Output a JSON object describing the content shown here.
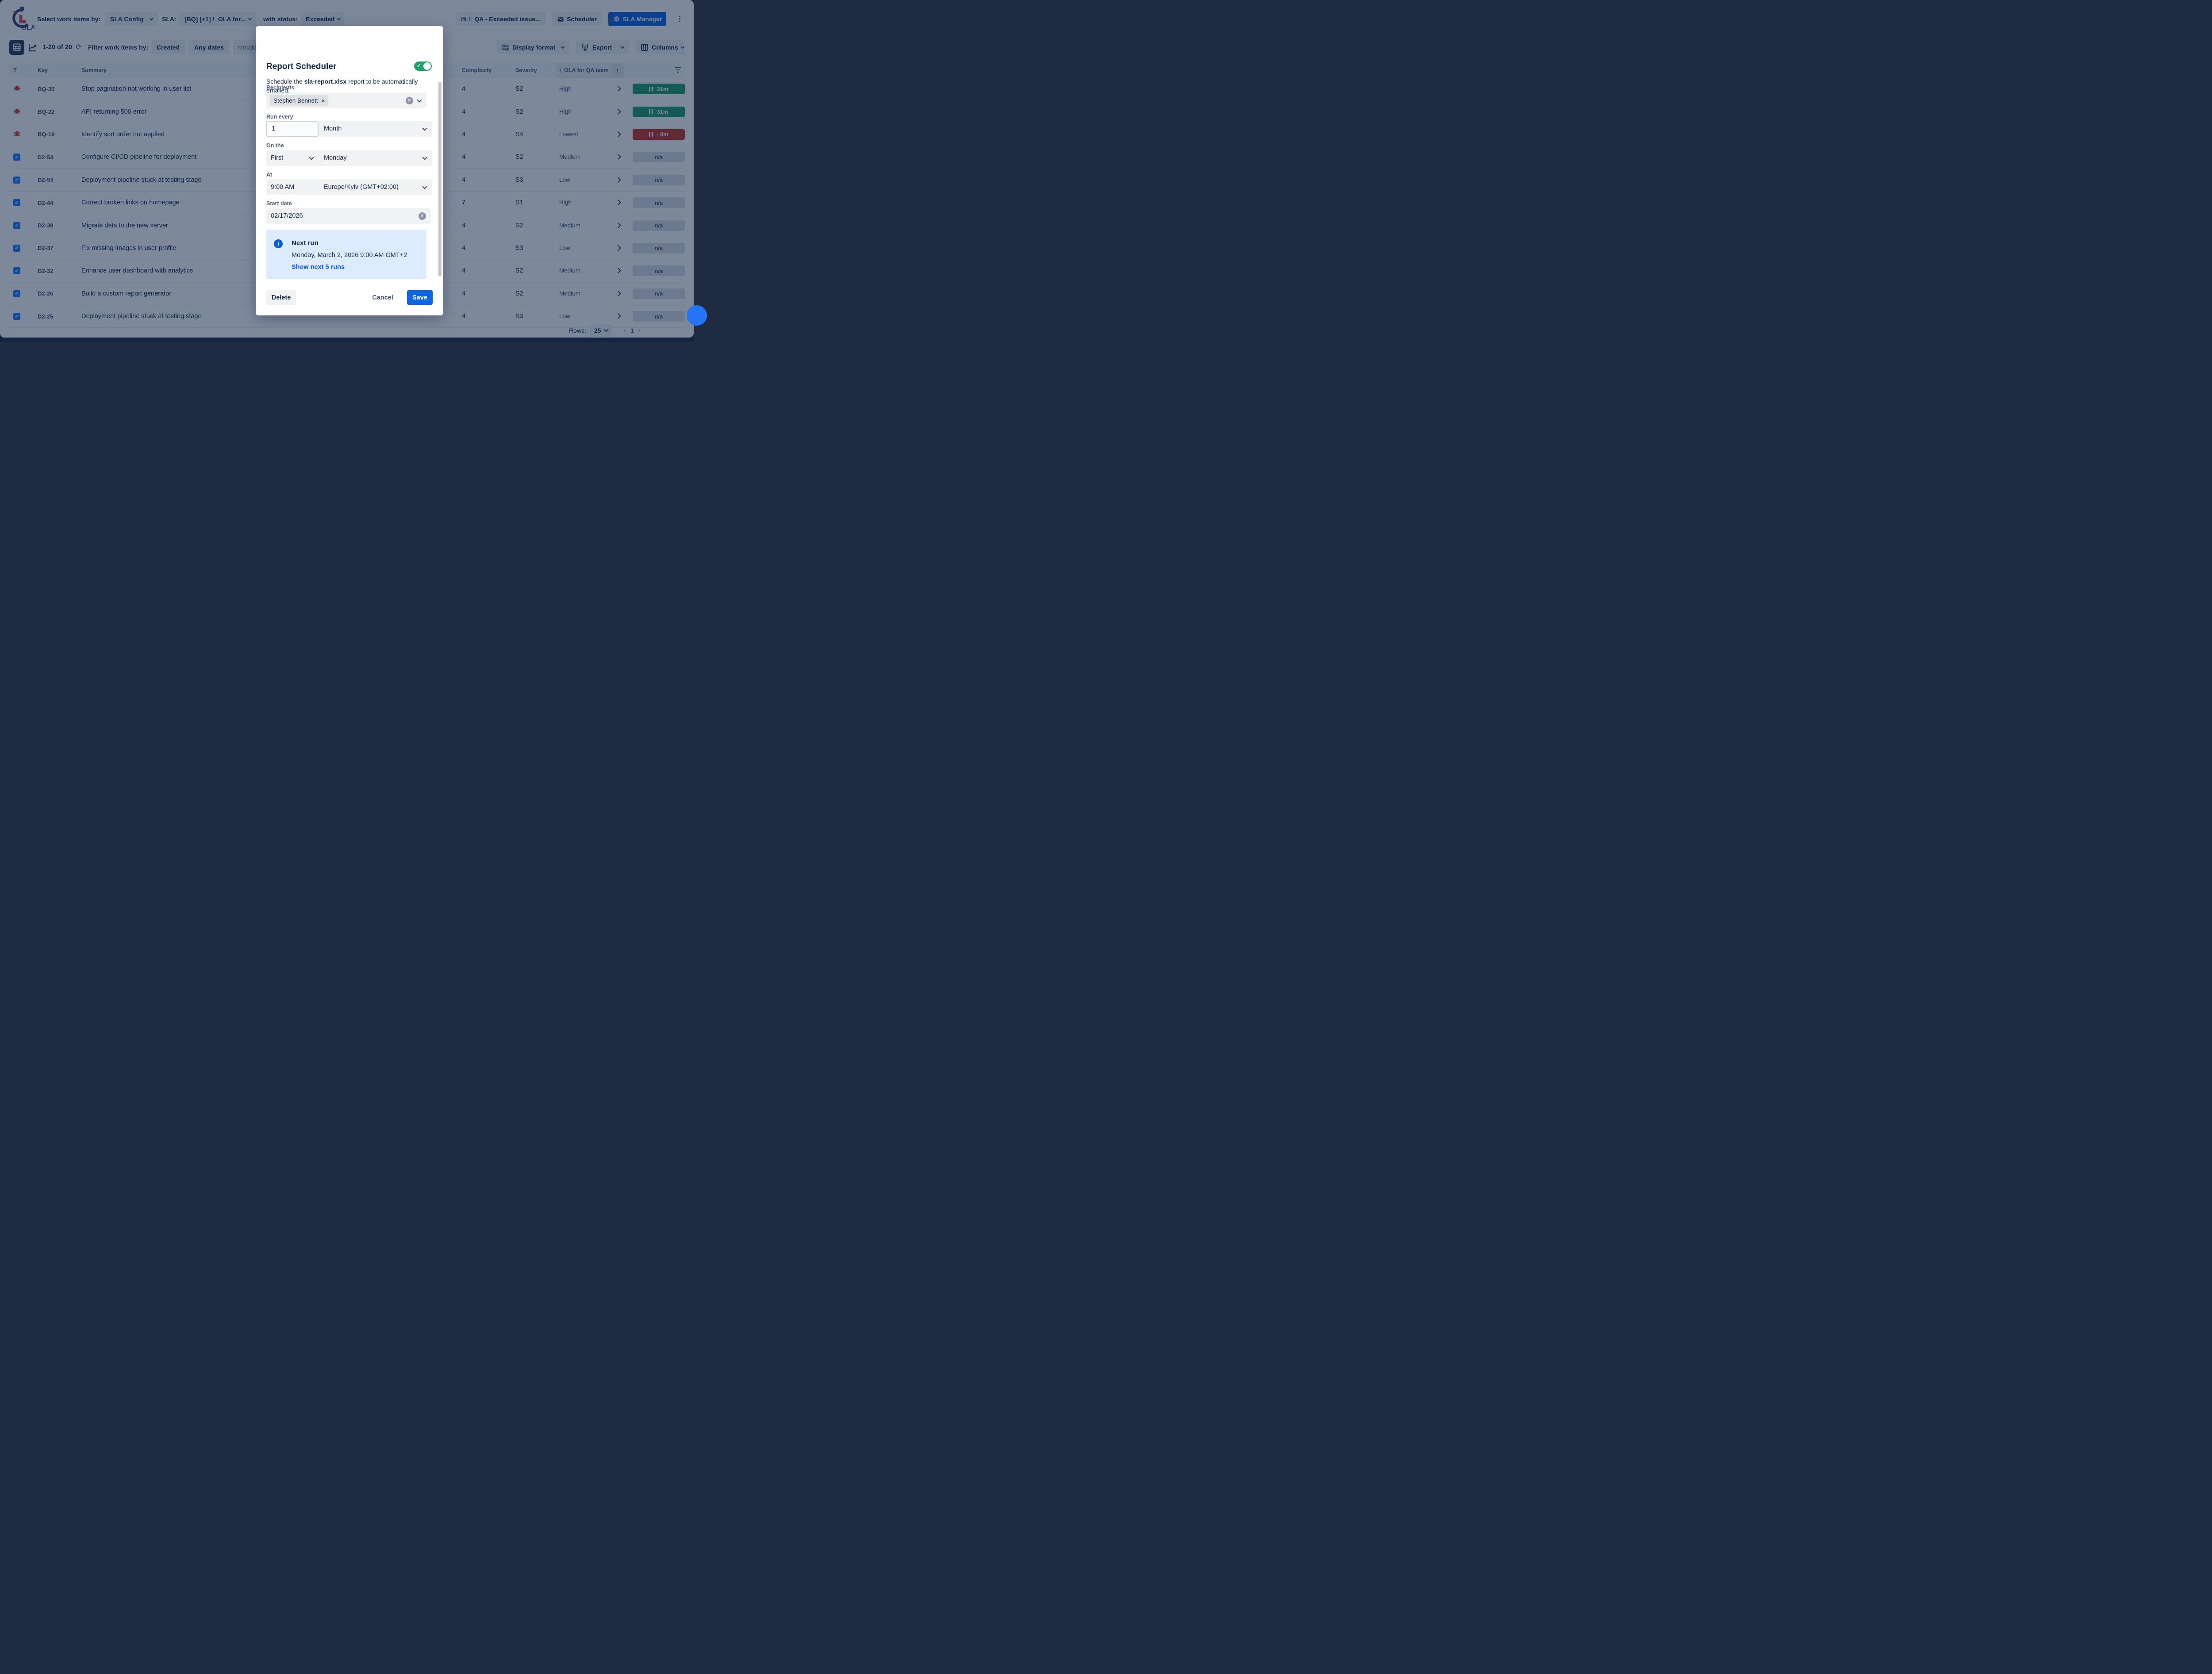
{
  "topbar": {
    "select_label": "Select work items by:",
    "sla_config_button": "SLA Config",
    "sla_label": "SLA:",
    "sla_value": "[BQ] [+1] !_OLA for...",
    "with_status_label": "with status:",
    "status_value": "Exceeded",
    "qa_view_button": "!_QA - Exceeded issue...",
    "scheduler_button": "Scheduler",
    "sla_manager_button": "SLA Manager",
    "logo_text": "SLA"
  },
  "toolbar": {
    "count": "1-20 of 20",
    "filter_label": "Filter work items by:",
    "created_button": "Created",
    "any_dates_button": "Any dates",
    "date_placeholder": "mm/dd/yyyy",
    "display_format_button": "Display format",
    "export_button": "Export",
    "columns_button": "Columns"
  },
  "table": {
    "headers": {
      "type": "T",
      "key": "Key",
      "summary": "Summary",
      "complexity": "Complexity",
      "severity": "Severity",
      "ola": "!_OLA for QA team"
    },
    "sort_icon": "↑",
    "rows": [
      {
        "type": "bug",
        "key": "BQ-35",
        "summary": "Stop pagination not working in user list",
        "complexity": "4",
        "severity": "S2",
        "ola_priority": "High",
        "sla_label": "31m",
        "sla_style": "green"
      },
      {
        "type": "bug",
        "key": "BQ-22",
        "summary": "API returning 500 error",
        "complexity": "4",
        "severity": "S2",
        "ola_priority": "High",
        "sla_label": "31m",
        "sla_style": "green"
      },
      {
        "type": "bug",
        "key": "BQ-19",
        "summary": "Identify sort order not applied",
        "complexity": "4",
        "severity": "S4",
        "ola_priority": "Lowest",
        "sla_label": "- 0m",
        "sla_style": "red"
      },
      {
        "type": "check",
        "key": "D2-54",
        "summary": "Configure CI/CD pipeline for deployment",
        "complexity": "4",
        "severity": "S2",
        "ola_priority": "Medium",
        "sla_label": "n/a",
        "sla_style": "na"
      },
      {
        "type": "check",
        "key": "D2-53",
        "summary": "Deployment pipeline stuck at testing stage",
        "complexity": "4",
        "severity": "S3",
        "ola_priority": "Low",
        "sla_label": "n/a",
        "sla_style": "na"
      },
      {
        "type": "check",
        "key": "D2-44",
        "summary": "Correct broken links on homepage",
        "complexity": "7",
        "severity": "S1",
        "ola_priority": "High",
        "sla_label": "n/a",
        "sla_style": "na"
      },
      {
        "type": "check",
        "key": "D2-38",
        "summary": "Migrate data to the new server",
        "complexity": "4",
        "severity": "S2",
        "ola_priority": "Medium",
        "sla_label": "n/a",
        "sla_style": "na"
      },
      {
        "type": "check",
        "key": "D2-37",
        "summary": "Fix missing images in user profile",
        "complexity": "4",
        "severity": "S3",
        "ola_priority": "Low",
        "sla_label": "n/a",
        "sla_style": "na"
      },
      {
        "type": "check",
        "key": "D2-32",
        "summary": "Enhance user dashboard with analytics",
        "complexity": "4",
        "severity": "S2",
        "ola_priority": "Medium",
        "sla_label": "n/a",
        "sla_style": "na"
      },
      {
        "type": "check",
        "key": "D2-26",
        "summary": "Build a custom report generator",
        "complexity": "4",
        "severity": "S2",
        "ola_priority": "Medium",
        "sla_label": "n/a",
        "sla_style": "na"
      },
      {
        "type": "check",
        "key": "D2-25",
        "summary": "Deployment pipeline stuck at testing stage",
        "complexity": "4",
        "severity": "S3",
        "ola_priority": "Low",
        "sla_label": "n/a",
        "sla_style": "na"
      }
    ]
  },
  "pagination": {
    "rows_label": "Rows:",
    "page_size": "25",
    "prev_icon": "‹",
    "page": "1",
    "next_icon": "›"
  },
  "modal": {
    "title": "Report Scheduler",
    "description_prefix": "Schedule the ",
    "description_file": "sla-report.xlsx",
    "description_suffix": " report to be automatically emailed.",
    "recipients_label": "Recipients",
    "recipient_chip": "Stephen Bennett",
    "chip_remove_icon": "×",
    "run_every_label": "Run every",
    "run_every_value": "1",
    "run_every_unit": "Month",
    "on_the_label": "On the",
    "on_the_ordinal": "First",
    "on_the_day": "Monday",
    "at_label": "At",
    "at_time": "9:00 AM",
    "timezone": "Europe/Kyiv (GMT+02:00)",
    "start_date_label": "Start date",
    "start_date_value": "02/17/2026",
    "next_run_title": "Next run",
    "next_run_value": "Monday, March 2, 2026 9:00 AM GMT+2",
    "show_runs_link": "Show next 5 runs",
    "delete_button": "Delete",
    "cancel_button": "Cancel",
    "save_button": "Save",
    "toggle_state": "on",
    "info_icon_glyph": "i",
    "toggle_check_glyph": "✓",
    "clear_icon_glyph": "×"
  },
  "icons": {
    "gear": "⚙",
    "more_vertical": "⋮",
    "refresh": "⟳",
    "sort_up": "↑",
    "checkbox_check": "✓"
  },
  "colors": {
    "blanket": "#091E42",
    "primary_blue": "#0C66E4",
    "toggle_green": "#22A06B",
    "timer_green": "#22A06B",
    "timer_red": "#C9372C",
    "bug_red": "#CA3521",
    "checkbox_blue": "#1D7AFC",
    "next_run_bg": "#DEEBFF",
    "link_blue": "#0C5CE5"
  }
}
